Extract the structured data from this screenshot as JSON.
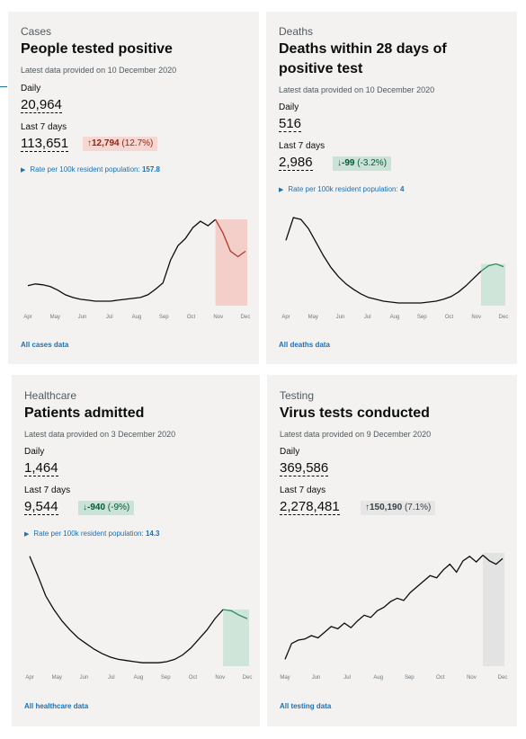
{
  "colors": {
    "card_bg": "#f3f2f1",
    "link": "#1d70b8",
    "line": "#0b0c0c",
    "highlight_red": "#f4cfc9",
    "highlight_green": "#cfe5da",
    "highlight_grey": "#e3e3e3",
    "green_line": "#2e8b57"
  },
  "cards": [
    {
      "category": "Cases",
      "title": "People tested positive",
      "latest": "Latest data provided on 10 December 2020",
      "daily_label": "Daily",
      "daily_value": "20,964",
      "week_label": "Last 7 days",
      "week_value": "113,651",
      "change_arrow": "↑",
      "change_amount": "12,794",
      "change_pct": "(12.7%)",
      "rate_text": "Rate per 100k resident population:",
      "rate_value": "157.8",
      "months": [
        "Apr",
        "May",
        "Jun",
        "Jul",
        "Aug",
        "Sep",
        "Oct",
        "Nov",
        "Dec"
      ],
      "link": "All cases data",
      "trend": [
        0.22,
        0.24,
        0.23,
        0.21,
        0.17,
        0.12,
        0.09,
        0.07,
        0.06,
        0.05,
        0.05,
        0.05,
        0.06,
        0.07,
        0.08,
        0.09,
        0.12,
        0.18,
        0.25,
        0.5,
        0.66,
        0.74,
        0.86,
        0.93,
        0.88,
        0.95,
        0.8,
        0.6,
        0.54,
        0.6
      ],
      "highlight_last": 4,
      "highlight_kind": "red"
    },
    {
      "category": "Deaths",
      "title": "Deaths within 28 days of positive test",
      "latest": "Latest data provided on 10 December 2020",
      "daily_label": "Daily",
      "daily_value": "516",
      "week_label": "Last 7 days",
      "week_value": "2,986",
      "change_arrow": "↓",
      "change_amount": "-99",
      "change_pct": "(-3.2%)",
      "rate_text": "Rate per 100k resident population:",
      "rate_value": "4",
      "months": [
        "Apr",
        "May",
        "Jun",
        "Jul",
        "Aug",
        "Sep",
        "Oct",
        "Nov",
        "Dec"
      ],
      "link": "All deaths data",
      "trend": [
        0.72,
        0.97,
        0.95,
        0.85,
        0.7,
        0.55,
        0.42,
        0.32,
        0.24,
        0.18,
        0.13,
        0.09,
        0.07,
        0.05,
        0.04,
        0.03,
        0.03,
        0.03,
        0.03,
        0.04,
        0.05,
        0.07,
        0.1,
        0.15,
        0.22,
        0.3,
        0.38,
        0.44,
        0.46,
        0.43
      ],
      "highlight_last": 3,
      "highlight_kind": "green"
    },
    {
      "category": "Healthcare",
      "title": "Patients admitted",
      "latest": "Latest data provided on 3 December 2020",
      "daily_label": "Daily",
      "daily_value": "1,464",
      "week_label": "Last 7 days",
      "week_value": "9,544",
      "change_arrow": "↓",
      "change_amount": "-940",
      "change_pct": "(-9%)",
      "rate_text": "Rate per 100k resident population:",
      "rate_value": "14.3",
      "months": [
        "Apr",
        "May",
        "Jun",
        "Jul",
        "Aug",
        "Sep",
        "Oct",
        "Nov",
        "Dec"
      ],
      "link": "All healthcare data",
      "trend": [
        0.97,
        0.8,
        0.62,
        0.5,
        0.4,
        0.32,
        0.25,
        0.2,
        0.15,
        0.11,
        0.08,
        0.06,
        0.05,
        0.04,
        0.03,
        0.03,
        0.03,
        0.04,
        0.06,
        0.1,
        0.16,
        0.24,
        0.32,
        0.42,
        0.5,
        0.49,
        0.45,
        0.42
      ],
      "highlight_last": 3,
      "highlight_kind": "green"
    },
    {
      "category": "Testing",
      "title": "Virus tests conducted",
      "latest": "Latest data provided on 9 December 2020",
      "daily_label": "Daily",
      "daily_value": "369,586",
      "week_label": "Last 7 days",
      "week_value": "2,278,481",
      "change_arrow": "↑",
      "change_amount": "150,190",
      "change_pct": "(7.1%)",
      "rate_text": "",
      "rate_value": "",
      "months": [
        "May",
        "Jun",
        "Jul",
        "Aug",
        "Sep",
        "Oct",
        "Nov",
        "Dec"
      ],
      "link": "All testing data",
      "trend": [
        0.06,
        0.2,
        0.23,
        0.24,
        0.27,
        0.25,
        0.3,
        0.35,
        0.33,
        0.38,
        0.34,
        0.4,
        0.45,
        0.43,
        0.49,
        0.52,
        0.57,
        0.6,
        0.58,
        0.65,
        0.7,
        0.75,
        0.8,
        0.78,
        0.85,
        0.9,
        0.83,
        0.93,
        0.97,
        0.92,
        0.98,
        0.93,
        0.9,
        0.95
      ],
      "highlight_last": 3,
      "highlight_kind": "grey"
    }
  ]
}
